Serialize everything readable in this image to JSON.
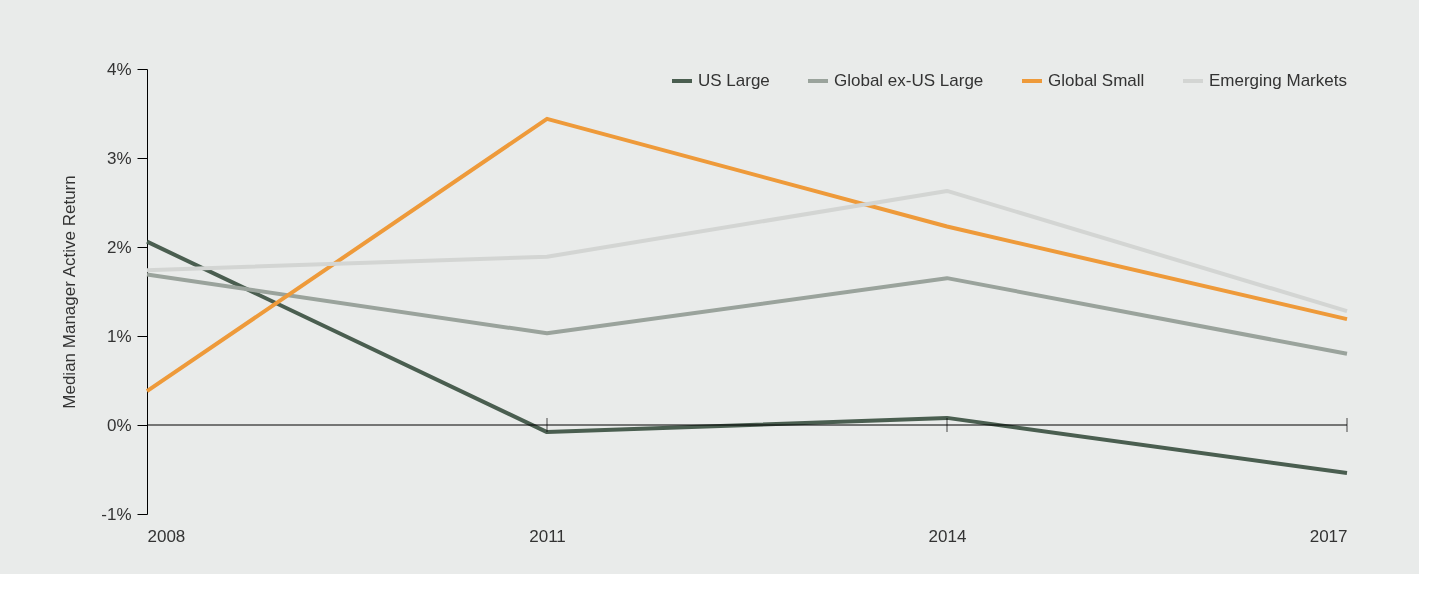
{
  "chart_data": {
    "type": "line",
    "ylabel": "Median Manager Active Return",
    "x": [
      2008,
      2011,
      2014,
      2017
    ],
    "xlim": [
      2008,
      2017
    ],
    "xticks": [
      {
        "value": 2008,
        "label": "2008"
      },
      {
        "value": 2011,
        "label": "2011"
      },
      {
        "value": 2014,
        "label": "2014"
      },
      {
        "value": 2017,
        "label": "2017"
      }
    ],
    "ylim": [
      -1,
      4
    ],
    "yticks": [
      {
        "value": -1,
        "label": "-1%"
      },
      {
        "value": 0,
        "label": "0%"
      },
      {
        "value": 1,
        "label": "1%"
      },
      {
        "value": 2,
        "label": "2%"
      },
      {
        "value": 3,
        "label": "3%"
      },
      {
        "value": 4,
        "label": "4%"
      }
    ],
    "series": [
      {
        "name": "US Large",
        "color": "#4a5e50",
        "values": [
          2.06,
          -0.08,
          0.08,
          -0.54
        ]
      },
      {
        "name": "Global ex-US Large",
        "color": "#9aa39c",
        "values": [
          1.69,
          1.03,
          1.65,
          0.8
        ]
      },
      {
        "name": "Global Small",
        "color": "#ee9a3a",
        "values": [
          0.38,
          3.44,
          2.23,
          1.19
        ]
      },
      {
        "name": "Emerging Markets",
        "color": "#d3d5d3",
        "values": [
          1.74,
          1.89,
          2.63,
          1.28
        ]
      }
    ],
    "ref_lines": [
      {
        "axis": "y",
        "value": 0,
        "color": "#000000"
      }
    ],
    "legend": "top right",
    "grid": false,
    "marker": "none",
    "line_style": "solid"
  }
}
